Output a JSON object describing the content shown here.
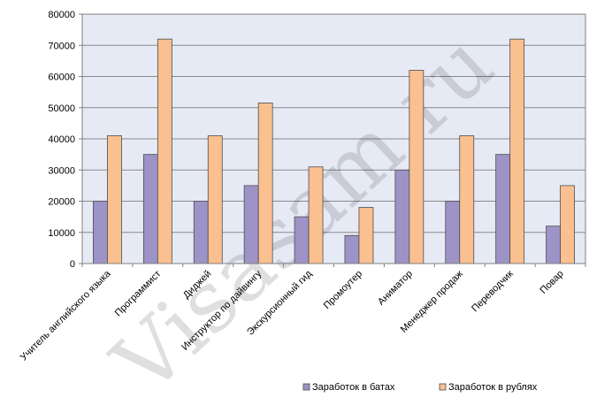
{
  "watermark": "Visasam.ru",
  "chart_data": {
    "type": "bar",
    "categories": [
      "Учитель английского языка",
      "Программист",
      "Диджей",
      "Инструктор по дайвингу",
      "Экскурсионный гид",
      "Промоутер",
      "Аниматор",
      "Менеджер продаж",
      "Переводчик",
      "Повар"
    ],
    "series": [
      {
        "name": "Заработок в батах",
        "color": "#9E93C6",
        "values": [
          20000,
          35000,
          20000,
          25000,
          15000,
          9000,
          30000,
          20000,
          35000,
          12000
        ]
      },
      {
        "name": "Заработок в рублях",
        "color": "#FAC090",
        "values": [
          41000,
          72000,
          41000,
          51500,
          31000,
          18000,
          62000,
          41000,
          72000,
          25000
        ]
      }
    ],
    "ylim": [
      0,
      80000
    ],
    "yticks": [
      0,
      10000,
      20000,
      30000,
      40000,
      50000,
      60000,
      70000,
      80000
    ],
    "plot_background": "#E6EAF5",
    "grid": true,
    "legend_position": "bottom-right",
    "title": "",
    "xlabel": "",
    "ylabel": ""
  }
}
